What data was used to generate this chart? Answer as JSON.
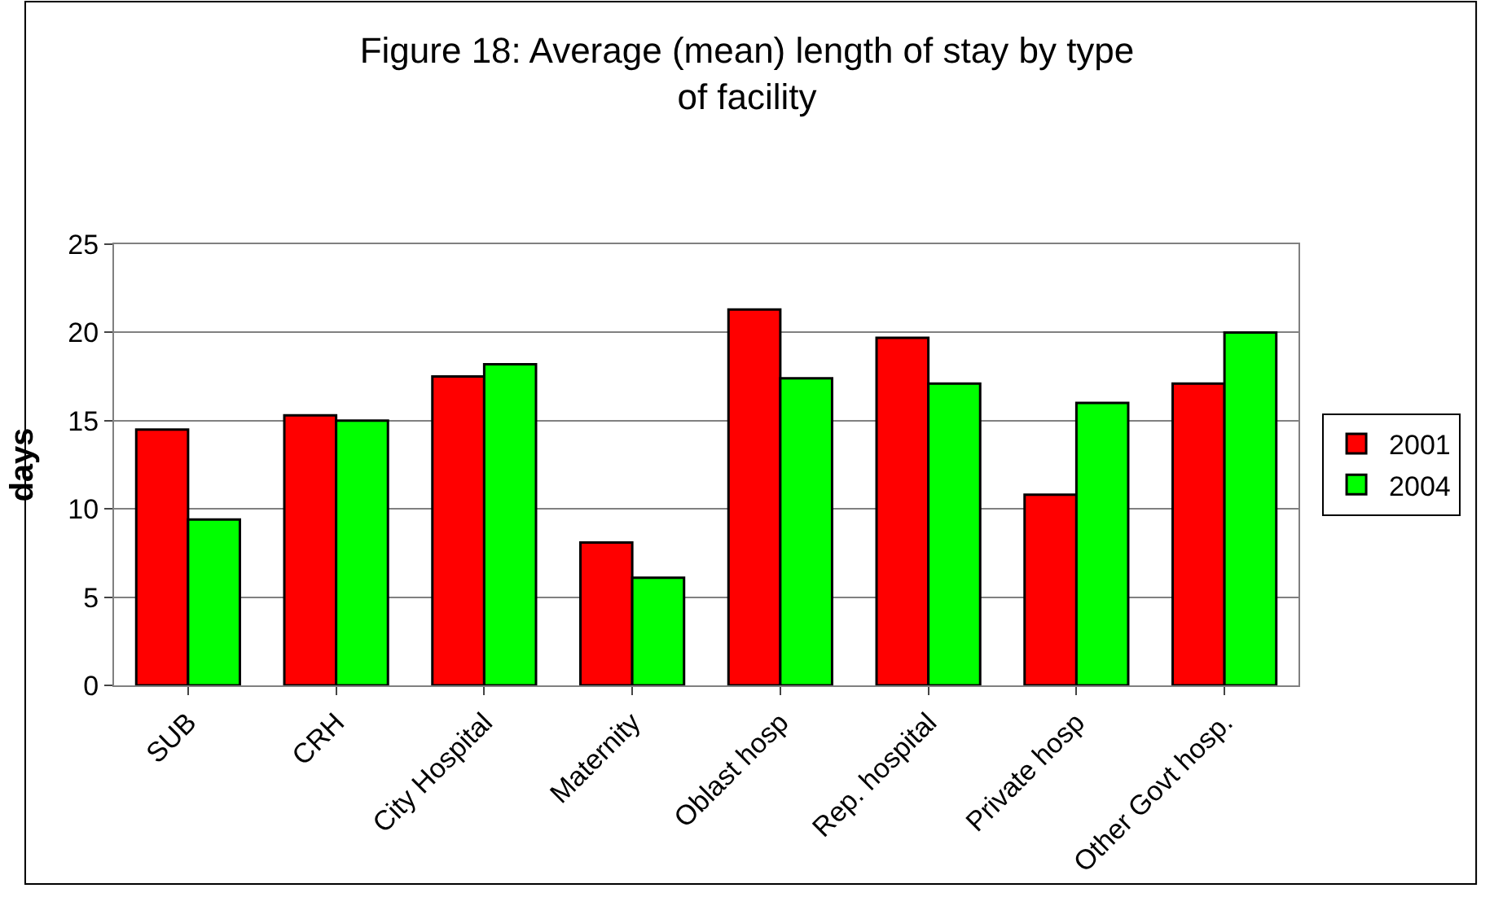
{
  "chart_data": {
    "type": "bar",
    "title": "Figure 18: Average (mean) length of stay by type of facility",
    "ylabel": "days",
    "categories": [
      "SUB",
      "CRH",
      "City Hospital",
      "Maternity",
      "Oblast hosp",
      "Rep. hospital",
      "Private hosp",
      "Other Govt hosp."
    ],
    "series": [
      {
        "name": "2001",
        "color": "#ff0000",
        "values": [
          14.5,
          15.3,
          17.5,
          8.1,
          21.3,
          19.7,
          10.8,
          17.1
        ]
      },
      {
        "name": "2004",
        "color": "#00ff00",
        "values": [
          9.4,
          15.0,
          18.2,
          6.1,
          17.4,
          17.1,
          16.0,
          20.0
        ]
      }
    ],
    "ylim": [
      0,
      25
    ],
    "yticks": [
      0,
      5,
      10,
      15,
      20,
      25
    ],
    "grid": "y",
    "legend": "right"
  }
}
